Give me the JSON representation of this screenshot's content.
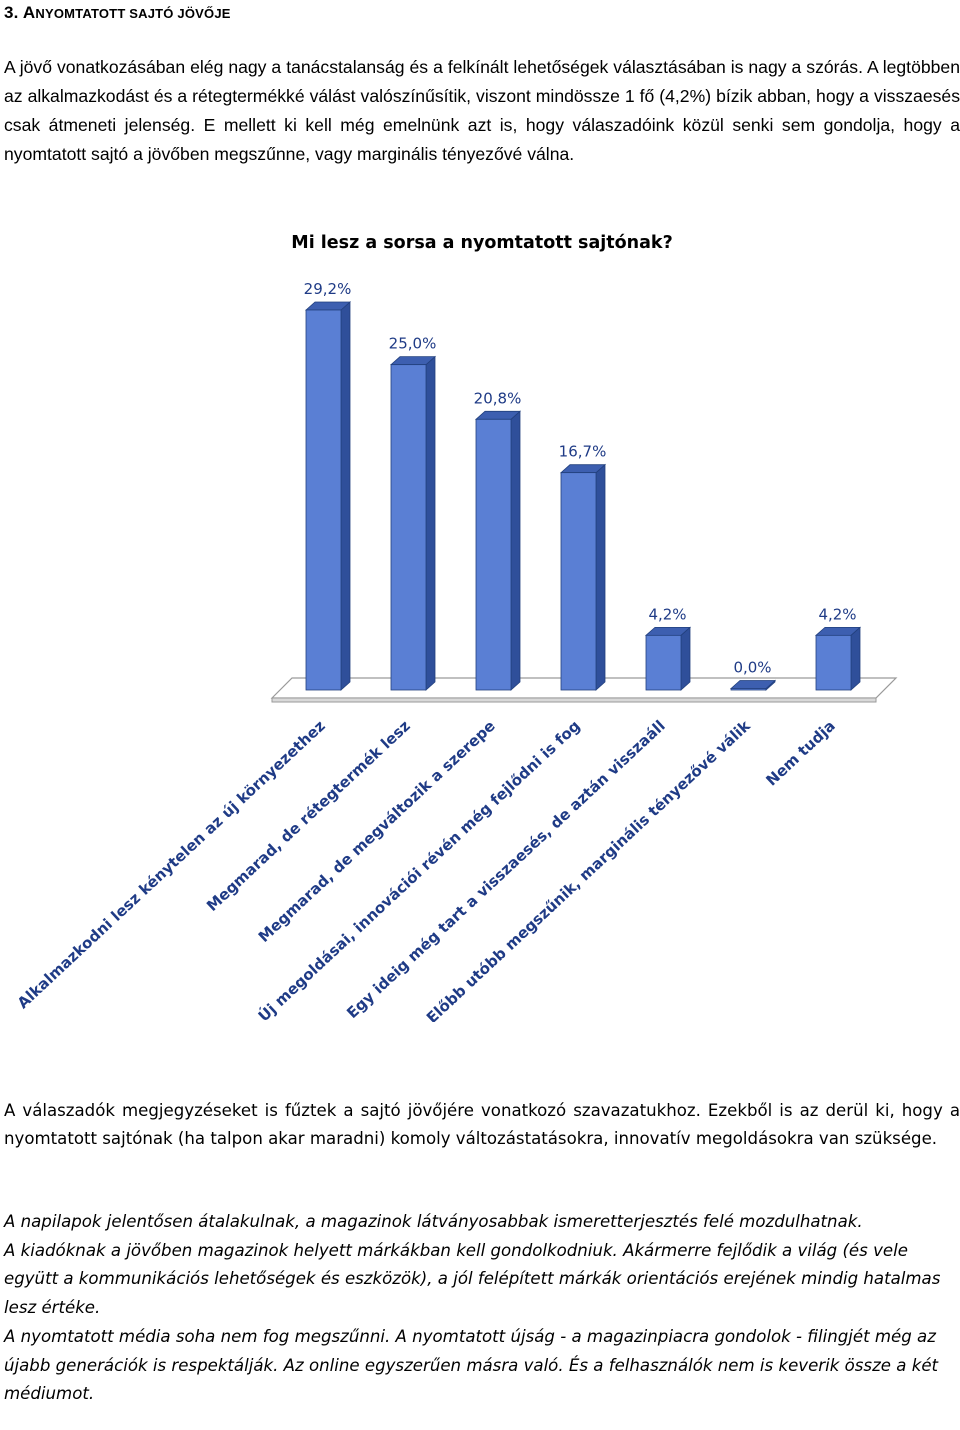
{
  "heading": {
    "number": "3.",
    "first_letter": "A",
    "rest": "NYOMTATOTT SAJTÓ JÖVŐJE"
  },
  "intro_paragraph": "A jövő vonatkozásában elég nagy a tanácstalanság és a felkínált lehetőségek választásában is nagy a szórás. A legtöbben az alkalmazkodást és a rétegtermékké válást valószínűsítik, viszont mindössze 1 fő (4,2%) bízik abban, hogy a visszaesés csak átmeneti jelenség. E mellett ki kell még emelnünk azt is, hogy válaszadóink közül senki sem gondolja, hogy a nyomtatott sajtó a jövőben megszűnne, vagy marginális tényezővé válna.",
  "chart_data": {
    "type": "bar",
    "title": "Mi lesz a sorsa a nyomtatott sajtónak?",
    "categories": [
      "Alkalmazkodni lesz kénytelen az új környezethez",
      "Megmarad, de rétegtermék lesz",
      "Megmarad, de megváltozik a szerepe",
      "Új megoldásai, innovációi révén még fejlődni is fog",
      "Egy ideig még tart a visszaesés, de aztán visszaáll",
      "Előbb utóbb megszűnik, marginális tényezővé válik",
      "Nem tudja"
    ],
    "values": [
      29.2,
      25.0,
      20.8,
      16.7,
      4.2,
      0.0,
      4.2
    ],
    "value_labels": [
      "29,2%",
      "25,0%",
      "20,8%",
      "16,7%",
      "4,2%",
      "0,0%",
      "4,2%"
    ],
    "ylim": [
      0,
      29.2
    ],
    "style": "3d-columns",
    "bar_color": "#5a7fd4",
    "bar_side_color": "#2f4f9a",
    "bar_top_color": "#3d5fb0",
    "label_color": "#1f3b86",
    "grid": false,
    "legend": "none"
  },
  "after_paragraph": "A válaszadók megjegyzéseket is fűztek a sajtó jövőjére vonatkozó szavazatukhoz. Ezekből is az derül ki, hogy a nyomtatott sajtónak (ha talpon akar maradni) komoly változástatásokra, innovatív megoldásokra van szüksége.",
  "quotes": [
    "A napilapok jelentősen átalakulnak, a magazinok látványosabbak ismeretterjesztés felé mozdulhatnak.",
    "A kiadóknak a jövőben magazinok helyett márkákban kell gondolkodniuk. Akármerre fejlődik a világ (és vele együtt a kommunikációs lehetőségek és eszközök), a jól felépített márkák orientációs erejének mindig hatalmas lesz értéke.",
    "A nyomtatott média soha nem fog megszűnni. A nyomtatott újság - a magazinpiacra gondolok - filingjét még az újabb generációk is respektálják. Az online egyszerűen másra való. És a felhasználók nem is keverik össze a két médiumot."
  ]
}
